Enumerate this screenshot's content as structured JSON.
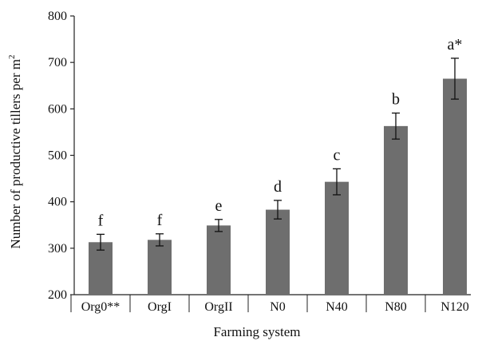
{
  "chart_data": {
    "type": "bar",
    "title": "",
    "xlabel": "Farming system",
    "ylabel": "Number of productive tillers per m",
    "ylabel_superscript": "2",
    "ylim": [
      200,
      800
    ],
    "yticks": [
      200,
      300,
      400,
      500,
      600,
      700,
      800
    ],
    "grid": false,
    "legend": "none",
    "categories": [
      "Org0**",
      "OrgI",
      "OrgII",
      "N0",
      "N40",
      "N80",
      "N120"
    ],
    "values": [
      313,
      318,
      349,
      383,
      443,
      563,
      665
    ],
    "error": [
      17,
      13,
      13,
      20,
      28,
      28,
      44
    ],
    "significance": [
      "f",
      "f",
      "e",
      "d",
      "c",
      "b",
      "a*"
    ],
    "bar_color": "#6e6e6e"
  }
}
